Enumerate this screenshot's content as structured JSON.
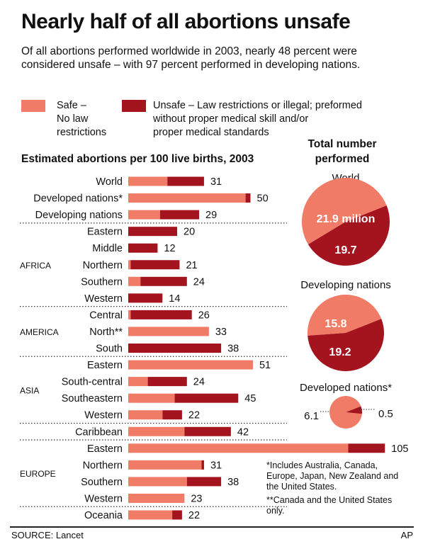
{
  "title": "Nearly half of all abortions unsafe",
  "subtitle": "Of all abortions performed worldwide in 2003, nearly 48 percent were considered unsafe – with 97 percent performed in developing nations.",
  "legend": {
    "safe_title": "Safe –",
    "safe_desc": [
      "No law",
      "restrictions"
    ],
    "unsafe_lines": [
      "Unsafe – Law restrictions or illegal; preformed",
      "without proper medical skill and/or",
      "proper medical standards"
    ]
  },
  "colors": {
    "safe": "#f07b66",
    "unsafe": "#a3141e",
    "divider": "#333333"
  },
  "chart_heading": "Estimated abortions per 100 live births, 2003",
  "total_heading": [
    "Total number",
    "performed"
  ],
  "chart_data": [
    {
      "type": "bar",
      "stacked": true,
      "orientation": "horizontal",
      "categories": [
        {
          "group": "",
          "label": "World"
        },
        {
          "group": "",
          "label": "Developed nations*"
        },
        {
          "group": "",
          "label": "Developing nations"
        },
        {
          "group": "AFRICA",
          "label": "Eastern"
        },
        {
          "group": "AFRICA",
          "label": "Middle"
        },
        {
          "group": "AFRICA",
          "label": "Northern"
        },
        {
          "group": "AFRICA",
          "label": "Southern"
        },
        {
          "group": "AFRICA",
          "label": "Western"
        },
        {
          "group": "AMERICA",
          "label": "Central"
        },
        {
          "group": "AMERICA",
          "label": "North**"
        },
        {
          "group": "AMERICA",
          "label": "South"
        },
        {
          "group": "ASIA",
          "label": "Eastern"
        },
        {
          "group": "ASIA",
          "label": "South-central"
        },
        {
          "group": "ASIA",
          "label": "Southeastern"
        },
        {
          "group": "ASIA",
          "label": "Western"
        },
        {
          "group": "",
          "label": "Caribbean"
        },
        {
          "group": "EUROPE",
          "label": "Eastern"
        },
        {
          "group": "EUROPE",
          "label": "Northern"
        },
        {
          "group": "EUROPE",
          "label": "Southern"
        },
        {
          "group": "EUROPE",
          "label": "Western"
        },
        {
          "group": "",
          "label": "Oceania"
        }
      ],
      "series": [
        {
          "name": "Safe",
          "values": [
            16,
            48,
            13,
            0,
            0,
            1,
            5,
            0,
            1,
            33,
            0,
            51,
            8,
            19,
            14,
            23,
            90,
            30,
            24,
            23,
            18
          ]
        },
        {
          "name": "Unsafe",
          "values": [
            15,
            2,
            16,
            20,
            12,
            20,
            19,
            14,
            25,
            0,
            38,
            0,
            16,
            26,
            8,
            19,
            15,
            1,
            14,
            0,
            4
          ]
        }
      ],
      "totals": [
        31,
        50,
        29,
        20,
        12,
        21,
        24,
        14,
        26,
        33,
        38,
        51,
        24,
        45,
        22,
        42,
        105,
        31,
        38,
        23,
        22
      ],
      "groups": [
        "AFRICA",
        "AMERICA",
        "ASIA",
        "EUROPE"
      ],
      "xlim": [
        0,
        105
      ]
    },
    {
      "type": "pie",
      "title": "World",
      "slices": [
        {
          "name": "Safe",
          "value": 21.9,
          "label": "21.9 milion"
        },
        {
          "name": "Unsafe",
          "value": 19.7,
          "label": "19.7"
        }
      ]
    },
    {
      "type": "pie",
      "title": "Developing nations",
      "slices": [
        {
          "name": "Safe",
          "value": 15.8,
          "label": "15.8"
        },
        {
          "name": "Unsafe",
          "value": 19.2,
          "label": "19.2"
        }
      ]
    },
    {
      "type": "pie",
      "title": "Developed nations*",
      "slices": [
        {
          "name": "Safe",
          "value": 6.1,
          "label": "6.1"
        },
        {
          "name": "Unsafe",
          "value": 0.5,
          "label": "0.5"
        }
      ]
    }
  ],
  "footnotes": [
    "*Includes Australia, Canada, Europe, Japan, New Zealand and the United States.",
    "**Canada and the United States only."
  ],
  "source": "SOURCE: Lancet",
  "credit": "AP"
}
